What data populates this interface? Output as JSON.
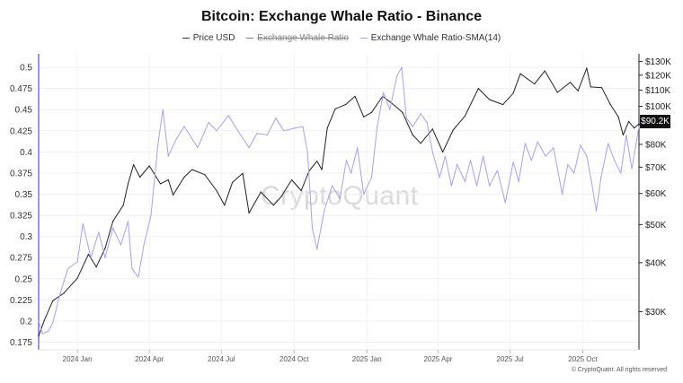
{
  "chart_data": {
    "type": "line",
    "title": "Bitcoin: Exchange Whale Ratio - Binance",
    "legend": [
      {
        "name": "Price USD",
        "visible": true
      },
      {
        "name": "Exchange Whale Ratio",
        "visible": false
      },
      {
        "name": "Exchange Whale Ratio-SMA(14)",
        "visible": true
      }
    ],
    "x_ticks": [
      {
        "label": "2024 Jan",
        "date": "2024-01-01"
      },
      {
        "label": "2024 Apr",
        "date": "2024-04-01"
      },
      {
        "label": "2024 Jul",
        "date": "2024-07-01"
      },
      {
        "label": "2024 Oct",
        "date": "2024-10-01"
      },
      {
        "label": "2025 Jan",
        "date": "2025-01-01"
      },
      {
        "label": "2025 Apr",
        "date": "2025-04-01"
      },
      {
        "label": "2025 Jul",
        "date": "2025-07-01"
      },
      {
        "label": "2025 Oct",
        "date": "2025-10-01"
      }
    ],
    "x_range": [
      "2023-11-13",
      "2025-12-11"
    ],
    "y_left": {
      "ticks": [
        "0.5",
        "0.475",
        "0.45",
        "0.425",
        "0.4",
        "0.375",
        "0.35",
        "0.325",
        "0.3",
        "0.275",
        "0.25",
        "0.225",
        "0.2",
        "0.175"
      ],
      "range": [
        0.166,
        0.516
      ]
    },
    "y_right": {
      "scale": "log",
      "tick_labels": [
        "$130K",
        "$120K",
        "$110K",
        "$100K",
        "$90K",
        "$80K",
        "$70K",
        "$60K",
        "$50K",
        "$40K",
        "$30K"
      ],
      "tick_values": [
        130000,
        120000,
        110000,
        100000,
        90000,
        80000,
        70000,
        60000,
        50000,
        40000,
        30000
      ],
      "range": [
        24000,
        136000
      ]
    },
    "current_price_label": "$90.2K",
    "series": [
      {
        "name": "Price USD",
        "axis": "right",
        "color": "#222222",
        "points": [
          [
            "2023-11-13",
            26000
          ],
          [
            "2023-11-20",
            28500
          ],
          [
            "2023-12-01",
            32000
          ],
          [
            "2023-12-15",
            33500
          ],
          [
            "2024-01-01",
            36500
          ],
          [
            "2024-01-15",
            42000
          ],
          [
            "2024-01-25",
            39000
          ],
          [
            "2024-02-05",
            43500
          ],
          [
            "2024-02-15",
            51000
          ],
          [
            "2024-02-28",
            56000
          ],
          [
            "2024-03-05",
            63500
          ],
          [
            "2024-03-12",
            71000
          ],
          [
            "2024-03-20",
            66000
          ],
          [
            "2024-04-01",
            70500
          ],
          [
            "2024-04-15",
            63500
          ],
          [
            "2024-04-25",
            65000
          ],
          [
            "2024-05-01",
            59500
          ],
          [
            "2024-05-15",
            66000
          ],
          [
            "2024-05-25",
            69000
          ],
          [
            "2024-06-10",
            67000
          ],
          [
            "2024-06-25",
            61000
          ],
          [
            "2024-07-05",
            56000
          ],
          [
            "2024-07-15",
            64000
          ],
          [
            "2024-07-28",
            67500
          ],
          [
            "2024-08-05",
            53500
          ],
          [
            "2024-08-20",
            60500
          ],
          [
            "2024-09-05",
            56000
          ],
          [
            "2024-09-15",
            59000
          ],
          [
            "2024-09-28",
            65000
          ],
          [
            "2024-10-10",
            61000
          ],
          [
            "2024-10-20",
            68500
          ],
          [
            "2024-10-30",
            72500
          ],
          [
            "2024-11-05",
            69000
          ],
          [
            "2024-11-12",
            88000
          ],
          [
            "2024-11-22",
            98500
          ],
          [
            "2024-12-05",
            101000
          ],
          [
            "2024-12-17",
            106000
          ],
          [
            "2024-12-28",
            94000
          ],
          [
            "2025-01-07",
            96500
          ],
          [
            "2025-01-21",
            106000
          ],
          [
            "2025-02-01",
            102000
          ],
          [
            "2025-02-15",
            96500
          ],
          [
            "2025-02-28",
            84500
          ],
          [
            "2025-03-10",
            80500
          ],
          [
            "2025-03-25",
            87500
          ],
          [
            "2025-04-07",
            76500
          ],
          [
            "2025-04-20",
            87000
          ],
          [
            "2025-05-05",
            94500
          ],
          [
            "2025-05-22",
            111000
          ],
          [
            "2025-06-05",
            104000
          ],
          [
            "2025-06-22",
            101000
          ],
          [
            "2025-07-05",
            108000
          ],
          [
            "2025-07-14",
            121000
          ],
          [
            "2025-08-01",
            114000
          ],
          [
            "2025-08-14",
            123000
          ],
          [
            "2025-08-30",
            108500
          ],
          [
            "2025-09-15",
            115000
          ],
          [
            "2025-09-25",
            109500
          ],
          [
            "2025-10-06",
            125000
          ],
          [
            "2025-10-11",
            112000
          ],
          [
            "2025-10-25",
            111500
          ],
          [
            "2025-11-05",
            101000
          ],
          [
            "2025-11-15",
            94000
          ],
          [
            "2025-11-21",
            84500
          ],
          [
            "2025-11-28",
            91500
          ],
          [
            "2025-12-05",
            88000
          ],
          [
            "2025-12-11",
            90200
          ]
        ]
      },
      {
        "name": "Exchange Whale Ratio-SMA(14)",
        "axis": "left",
        "color": "#a8a0f0",
        "points": [
          [
            "2023-11-13",
            0.2
          ],
          [
            "2023-11-18",
            0.185
          ],
          [
            "2023-11-25",
            0.188
          ],
          [
            "2023-12-01",
            0.198
          ],
          [
            "2023-12-10",
            0.232
          ],
          [
            "2023-12-20",
            0.262
          ],
          [
            "2024-01-01",
            0.27
          ],
          [
            "2024-01-08",
            0.315
          ],
          [
            "2024-01-18",
            0.275
          ],
          [
            "2024-01-28",
            0.305
          ],
          [
            "2024-02-05",
            0.275
          ],
          [
            "2024-02-15",
            0.31
          ],
          [
            "2024-02-25",
            0.29
          ],
          [
            "2024-03-05",
            0.318
          ],
          [
            "2024-03-10",
            0.262
          ],
          [
            "2024-03-18",
            0.252
          ],
          [
            "2024-03-25",
            0.29
          ],
          [
            "2024-04-03",
            0.325
          ],
          [
            "2024-04-12",
            0.41
          ],
          [
            "2024-04-18",
            0.45
          ],
          [
            "2024-04-25",
            0.395
          ],
          [
            "2024-05-05",
            0.415
          ],
          [
            "2024-05-15",
            0.43
          ],
          [
            "2024-05-22",
            0.42
          ],
          [
            "2024-06-01",
            0.405
          ],
          [
            "2024-06-15",
            0.435
          ],
          [
            "2024-06-25",
            0.425
          ],
          [
            "2024-07-10",
            0.443
          ],
          [
            "2024-07-22",
            0.425
          ],
          [
            "2024-08-05",
            0.405
          ],
          [
            "2024-08-15",
            0.422
          ],
          [
            "2024-08-28",
            0.42
          ],
          [
            "2024-09-08",
            0.44
          ],
          [
            "2024-09-18",
            0.425
          ],
          [
            "2024-10-01",
            0.428
          ],
          [
            "2024-10-12",
            0.43
          ],
          [
            "2024-10-18",
            0.4
          ],
          [
            "2024-10-24",
            0.31
          ],
          [
            "2024-10-30",
            0.285
          ],
          [
            "2024-11-08",
            0.33
          ],
          [
            "2024-11-18",
            0.36
          ],
          [
            "2024-11-28",
            0.345
          ],
          [
            "2024-12-06",
            0.39
          ],
          [
            "2024-12-12",
            0.375
          ],
          [
            "2024-12-20",
            0.405
          ],
          [
            "2024-12-28",
            0.35
          ],
          [
            "2025-01-07",
            0.37
          ],
          [
            "2025-01-14",
            0.43
          ],
          [
            "2025-01-22",
            0.47
          ],
          [
            "2025-01-30",
            0.45
          ],
          [
            "2025-02-08",
            0.49
          ],
          [
            "2025-02-14",
            0.5
          ],
          [
            "2025-02-20",
            0.44
          ],
          [
            "2025-02-28",
            0.43
          ],
          [
            "2025-03-10",
            0.445
          ],
          [
            "2025-03-18",
            0.435
          ],
          [
            "2025-03-25",
            0.4
          ],
          [
            "2025-04-03",
            0.37
          ],
          [
            "2025-04-10",
            0.395
          ],
          [
            "2025-04-18",
            0.36
          ],
          [
            "2025-04-25",
            0.385
          ],
          [
            "2025-05-05",
            0.365
          ],
          [
            "2025-05-12",
            0.39
          ],
          [
            "2025-05-20",
            0.36
          ],
          [
            "2025-05-28",
            0.395
          ],
          [
            "2025-06-05",
            0.36
          ],
          [
            "2025-06-15",
            0.378
          ],
          [
            "2025-06-25",
            0.34
          ],
          [
            "2025-07-05",
            0.388
          ],
          [
            "2025-07-12",
            0.365
          ],
          [
            "2025-07-20",
            0.41
          ],
          [
            "2025-07-28",
            0.39
          ],
          [
            "2025-08-05",
            0.412
          ],
          [
            "2025-08-15",
            0.395
          ],
          [
            "2025-08-25",
            0.405
          ],
          [
            "2025-09-05",
            0.35
          ],
          [
            "2025-09-12",
            0.385
          ],
          [
            "2025-09-20",
            0.375
          ],
          [
            "2025-09-28",
            0.408
          ],
          [
            "2025-10-06",
            0.395
          ],
          [
            "2025-10-12",
            0.365
          ],
          [
            "2025-10-18",
            0.33
          ],
          [
            "2025-10-24",
            0.37
          ],
          [
            "2025-11-02",
            0.41
          ],
          [
            "2025-11-10",
            0.39
          ],
          [
            "2025-11-18",
            0.375
          ],
          [
            "2025-11-25",
            0.42
          ],
          [
            "2025-12-02",
            0.38
          ],
          [
            "2025-12-11",
            0.43
          ]
        ]
      }
    ]
  },
  "watermark": "CryptoQuant",
  "copyright": "© CryptoQuant. All rights reserved"
}
